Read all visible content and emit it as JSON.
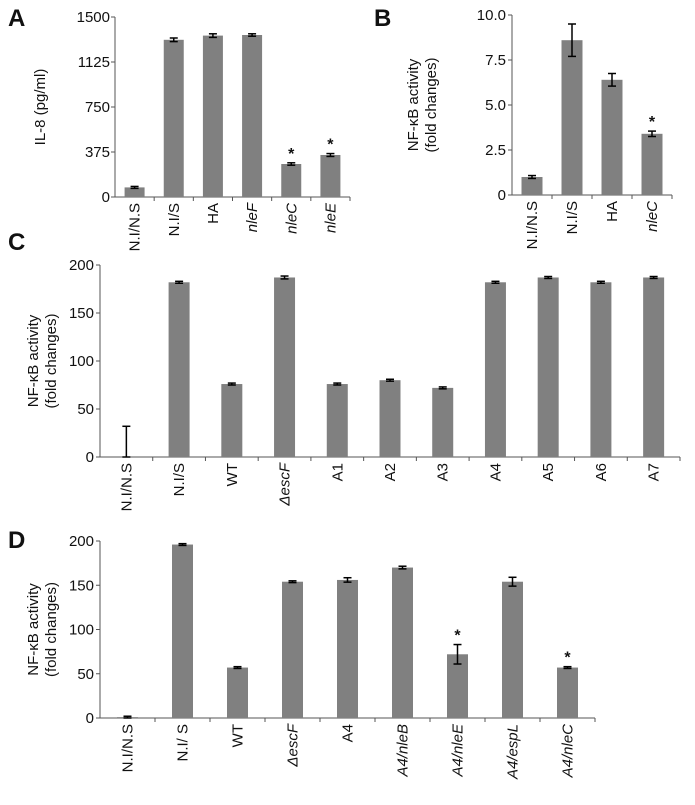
{
  "chart_data": [
    {
      "panel": "A",
      "type": "bar",
      "ylabel": "IL-8 (pg/ml)",
      "ylim": [
        0,
        1500
      ],
      "yticks": [
        "0",
        "375",
        "750",
        "1125",
        "1500"
      ],
      "categories": [
        "N.I/N.S",
        "N.I/S",
        "HA",
        "nleF",
        "nleC",
        "nleE"
      ],
      "italic_categories": [
        false,
        false,
        false,
        true,
        true,
        true
      ],
      "values": [
        80,
        1310,
        1345,
        1350,
        275,
        350
      ],
      "errors": [
        8,
        15,
        15,
        10,
        10,
        12
      ],
      "significance": [
        "",
        "",
        "",
        "",
        "*",
        "*"
      ],
      "bar_color": "#808080"
    },
    {
      "panel": "B",
      "type": "bar",
      "ylabel": "NF-κB activity\n(fold changes)",
      "ylim": [
        0,
        10
      ],
      "yticks": [
        "0",
        "2.5",
        "5.0",
        "7.5",
        "10.0"
      ],
      "categories": [
        "N.I/N.S",
        "N.I/S",
        "HA",
        "nleC"
      ],
      "italic_categories": [
        false,
        false,
        false,
        true
      ],
      "values": [
        1.0,
        8.6,
        6.4,
        3.4
      ],
      "errors": [
        0.08,
        0.9,
        0.35,
        0.15
      ],
      "significance": [
        "",
        "",
        "",
        "*"
      ],
      "bar_color": "#808080"
    },
    {
      "panel": "C",
      "type": "bar",
      "ylabel": "NF-κB activity\n(fold changes)",
      "ylim": [
        0,
        200
      ],
      "yticks": [
        "0",
        "50",
        "100",
        "150",
        "200"
      ],
      "categories": [
        "N.I/N.S",
        "N.I/S",
        "WT",
        "ΔescF",
        "A1",
        "A2",
        "A3",
        "A4",
        "A5",
        "A6",
        "A7"
      ],
      "italic_categories": [
        false,
        false,
        false,
        true,
        false,
        false,
        false,
        false,
        false,
        false,
        false
      ],
      "values": [
        0,
        182,
        76,
        187,
        76,
        80,
        72,
        182,
        187,
        182,
        187
      ],
      "errors": [
        32,
        1,
        1,
        1.5,
        1,
        1,
        1,
        1,
        1,
        1,
        1
      ],
      "significance": [
        "",
        "",
        "",
        "",
        "",
        "",
        "",
        "",
        "",
        "",
        ""
      ],
      "bar_color": "#808080"
    },
    {
      "panel": "D",
      "type": "bar",
      "ylabel": "NF-κB activity\n(fold changes)",
      "ylim": [
        0,
        200
      ],
      "yticks": [
        "0",
        "50",
        "100",
        "150",
        "200"
      ],
      "categories": [
        "N.I/N.S",
        "N.I/ S",
        "WT",
        "ΔescF",
        "A4",
        "A4/nleB",
        "A4/nleE",
        "A4/espL",
        "A4/nleC"
      ],
      "italic_categories": [
        false,
        false,
        false,
        true,
        false,
        true,
        true,
        true,
        true
      ],
      "values": [
        1,
        196,
        57,
        154,
        156,
        170,
        72,
        154,
        57
      ],
      "errors": [
        1,
        1,
        1,
        1,
        2.5,
        1.5,
        11,
        5,
        1
      ],
      "significance": [
        "",
        "",
        "",
        "",
        "",
        "",
        "*",
        "",
        "*"
      ],
      "bar_color": "#808080"
    }
  ]
}
